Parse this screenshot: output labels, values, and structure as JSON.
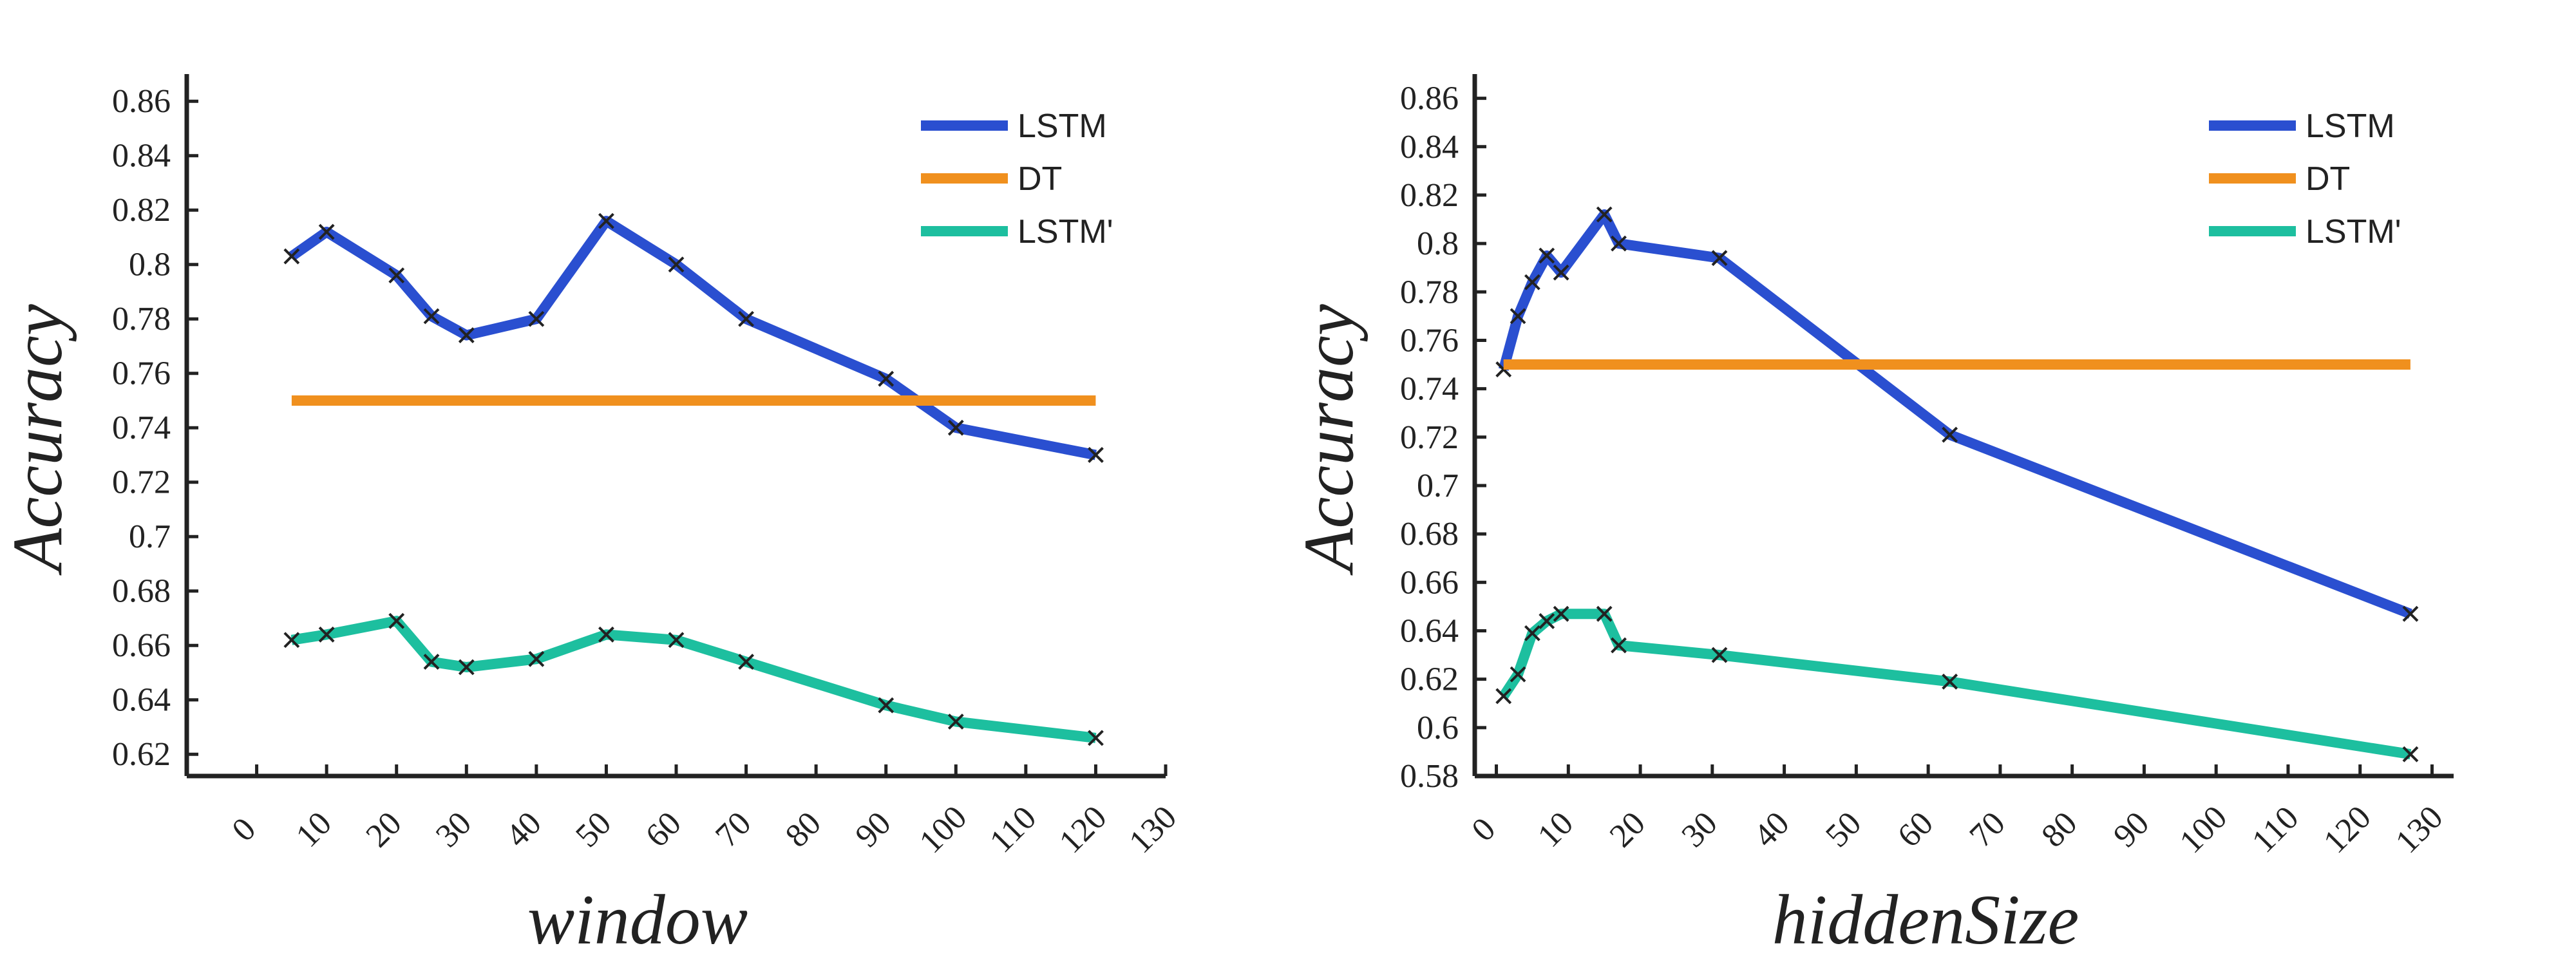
{
  "chart_data": [
    {
      "type": "line",
      "xlabel": "window",
      "ylabel": "Accuracy",
      "xlim": [
        -10,
        130
      ],
      "ylim": [
        0.612,
        0.87
      ],
      "xticks": [
        "0",
        "10",
        "20",
        "30",
        "40",
        "50",
        "60",
        "70",
        "80",
        "90",
        "100",
        "110",
        "120",
        "130"
      ],
      "yticks": [
        "0.62",
        "0.64",
        "0.66",
        "0.68",
        "0.7",
        "0.72",
        "0.74",
        "0.76",
        "0.78",
        "0.8",
        "0.82",
        "0.84",
        "0.86"
      ],
      "legend_position": "top-right",
      "series": [
        {
          "name": "LSTM",
          "color": "#2a4fd0",
          "markers": true,
          "x": [
            5,
            10,
            20,
            25,
            30,
            40,
            50,
            60,
            70,
            90,
            100,
            120
          ],
          "y": [
            0.803,
            0.812,
            0.796,
            0.781,
            0.774,
            0.78,
            0.816,
            0.8,
            0.78,
            0.758,
            0.74,
            0.73
          ]
        },
        {
          "name": "DT",
          "color": "#f0901e",
          "markers": false,
          "x": [
            5,
            120
          ],
          "y": [
            0.75,
            0.75
          ]
        },
        {
          "name": "LSTM'",
          "color": "#1dbf9f",
          "markers": true,
          "x": [
            5,
            10,
            20,
            25,
            30,
            40,
            50,
            60,
            70,
            90,
            100,
            120
          ],
          "y": [
            0.662,
            0.664,
            0.669,
            0.654,
            0.652,
            0.655,
            0.664,
            0.662,
            0.654,
            0.638,
            0.632,
            0.626
          ]
        }
      ]
    },
    {
      "type": "line",
      "xlabel": "hiddenSize",
      "ylabel": "Accuracy",
      "xlim": [
        -3,
        133
      ],
      "ylim": [
        0.58,
        0.87
      ],
      "xticks": [
        "0",
        "10",
        "20",
        "30",
        "40",
        "50",
        "60",
        "70",
        "80",
        "90",
        "100",
        "110",
        "120",
        "130"
      ],
      "yticks": [
        "0.58",
        "0.6",
        "0.62",
        "0.64",
        "0.66",
        "0.68",
        "0.7",
        "0.72",
        "0.74",
        "0.76",
        "0.78",
        "0.8",
        "0.82",
        "0.84",
        "0.86"
      ],
      "legend_position": "top-right",
      "series": [
        {
          "name": "LSTM",
          "color": "#2a4fd0",
          "markers": true,
          "x": [
            1,
            3,
            5,
            7,
            9,
            15,
            17,
            31,
            63,
            127
          ],
          "y": [
            0.748,
            0.77,
            0.784,
            0.795,
            0.788,
            0.812,
            0.8,
            0.794,
            0.721,
            0.647
          ]
        },
        {
          "name": "DT",
          "color": "#f0901e",
          "markers": false,
          "x": [
            1,
            127
          ],
          "y": [
            0.75,
            0.75
          ]
        },
        {
          "name": "LSTM'",
          "color": "#1dbf9f",
          "markers": true,
          "x": [
            1,
            3,
            5,
            7,
            9,
            15,
            17,
            31,
            63,
            127
          ],
          "y": [
            0.613,
            0.622,
            0.639,
            0.644,
            0.647,
            0.647,
            0.634,
            0.63,
            0.619,
            0.589
          ]
        }
      ]
    }
  ]
}
